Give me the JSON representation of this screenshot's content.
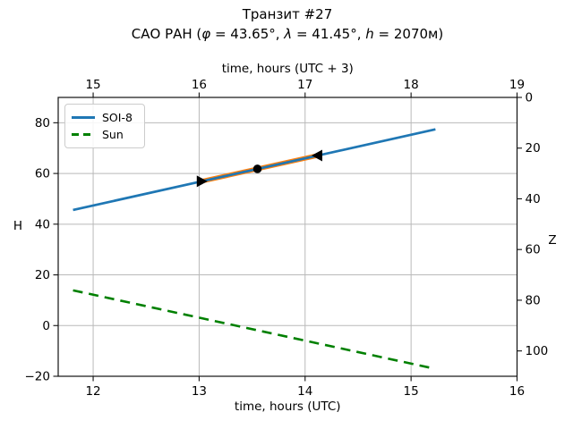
{
  "figure": {
    "title": "Транзит #27",
    "subtitle_parts": [
      {
        "text": "САО РАН (",
        "italic": false
      },
      {
        "text": "φ",
        "italic": true
      },
      {
        "text": " = 43.65°, ",
        "italic": false
      },
      {
        "text": "λ",
        "italic": true
      },
      {
        "text": " = 41.45°, ",
        "italic": false
      },
      {
        "text": "h",
        "italic": true
      },
      {
        "text": " = 2070м)",
        "italic": false
      }
    ]
  },
  "legend": {
    "position": "upper-left",
    "entries": [
      {
        "label": "SOI-8",
        "color": "#1f77b4",
        "style": "solid"
      },
      {
        "label": "Sun",
        "color": "#008000",
        "style": "dashed"
      }
    ]
  },
  "chart_data": {
    "type": "line",
    "title": "Транзит #27",
    "subtitle": "САО РАН (φ = 43.65°, λ = 41.45°, h = 2070м)",
    "grid": {
      "show": true,
      "color": "#b9b9b9"
    },
    "axes": {
      "x_bottom": {
        "label": "time, hours (UTC)",
        "min": 11.67,
        "max": 16.0,
        "ticks": [
          {
            "v": 12,
            "label": "12"
          },
          {
            "v": 13,
            "label": "13"
          },
          {
            "v": 14,
            "label": "14"
          },
          {
            "v": 15,
            "label": "15"
          },
          {
            "v": 16,
            "label": "16"
          }
        ]
      },
      "x_top": {
        "label": "time, hours (UTC + 3)",
        "utc_offset": 3,
        "ticks": [
          {
            "v": 15,
            "label": "15"
          },
          {
            "v": 16,
            "label": "16"
          },
          {
            "v": 17,
            "label": "17"
          },
          {
            "v": 18,
            "label": "18"
          },
          {
            "v": 19,
            "label": "19"
          }
        ]
      },
      "y_left": {
        "label": "H",
        "min": -20,
        "max": 90,
        "ticks": [
          {
            "v": -20,
            "label": "−20"
          },
          {
            "v": 0,
            "label": "0"
          },
          {
            "v": 20,
            "label": "20"
          },
          {
            "v": 40,
            "label": "40"
          },
          {
            "v": 60,
            "label": "60"
          },
          {
            "v": 80,
            "label": "80"
          }
        ]
      },
      "y_right": {
        "label": "Z",
        "base": 90,
        "ticks": [
          {
            "v": 0,
            "label": "0"
          },
          {
            "v": 20,
            "label": "20"
          },
          {
            "v": 40,
            "label": "40"
          },
          {
            "v": 60,
            "label": "60"
          },
          {
            "v": 80,
            "label": "80"
          },
          {
            "v": 100,
            "label": "100"
          }
        ]
      }
    },
    "series": [
      {
        "name": "SOI-8",
        "color": "#1f77b4",
        "line_style": "solid",
        "width": 2.7,
        "x": [
          11.81,
          15.23
        ],
        "y": [
          45.6,
          77.4
        ]
      },
      {
        "name": "Sun",
        "color": "#008000",
        "line_style": "dashed",
        "width": 2.6,
        "x": [
          11.81,
          15.21
        ],
        "y": [
          13.9,
          -16.9
        ]
      }
    ],
    "transit_segment": {
      "color": "#ff7f0e",
      "width": 5.2,
      "t_start": 13.02,
      "H_start": 56.9,
      "t_end": 14.12,
      "H_end": 67.1,
      "start_marker": "triangle-right",
      "end_marker": "triangle-left",
      "marker_color": "#000000",
      "culmination": {
        "t": 13.55,
        "H": 61.8,
        "marker": "circle"
      }
    }
  }
}
